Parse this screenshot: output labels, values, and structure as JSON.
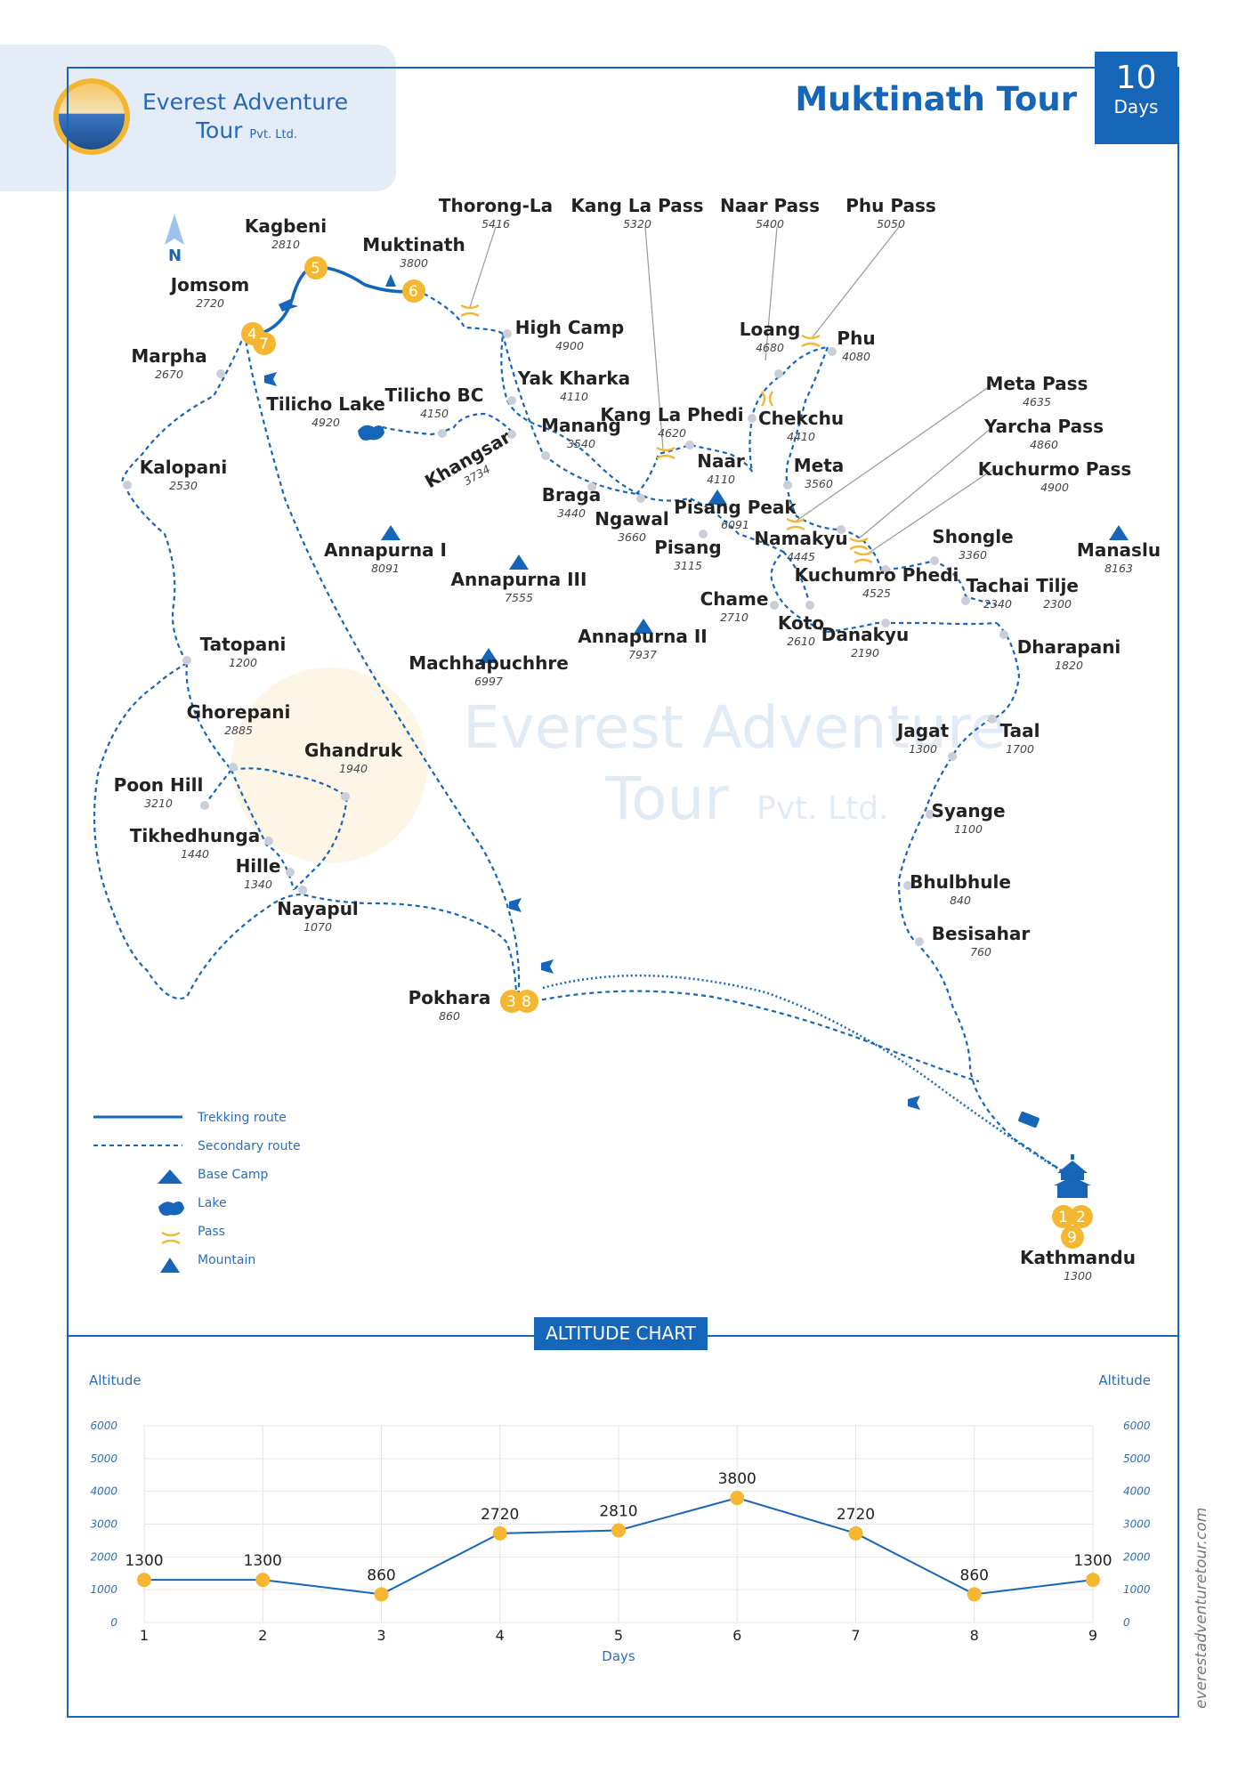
{
  "brand": {
    "line1": "Everest Adventure",
    "line2": "Tour",
    "line2_suffix": "Pvt. Ltd."
  },
  "tour": {
    "title": "Muktinath Tour",
    "days_number": "10",
    "days_label": "Days"
  },
  "compass": "N",
  "watermark": {
    "line1": "Everest Adventure",
    "line2": "Tour",
    "line2_suffix": "Pvt. Ltd."
  },
  "website": "everestadventuretour.com",
  "places": [
    {
      "name": "Kagbeni",
      "alt": "2810"
    },
    {
      "name": "Muktinath",
      "alt": "3800"
    },
    {
      "name": "Jomsom",
      "alt": "2720"
    },
    {
      "name": "Marpha",
      "alt": "2670"
    },
    {
      "name": "Tilicho Lake",
      "alt": "4920"
    },
    {
      "name": "Tilicho BC",
      "alt": "4150"
    },
    {
      "name": "Khangsar",
      "alt": "3734"
    },
    {
      "name": "High Camp",
      "alt": "4900"
    },
    {
      "name": "Yak Kharka",
      "alt": "4110"
    },
    {
      "name": "Manang",
      "alt": "3540"
    },
    {
      "name": "Kang La Phedi",
      "alt": "4620"
    },
    {
      "name": "Braga",
      "alt": "3440"
    },
    {
      "name": "Ngawal",
      "alt": "3660"
    },
    {
      "name": "Pisang",
      "alt": "3115"
    },
    {
      "name": "Chame",
      "alt": "2710"
    },
    {
      "name": "Koto",
      "alt": "2610"
    },
    {
      "name": "Danakyu",
      "alt": "2190"
    },
    {
      "name": "Loang",
      "alt": "4680"
    },
    {
      "name": "Phu",
      "alt": "4080"
    },
    {
      "name": "Chekchu",
      "alt": "4410"
    },
    {
      "name": "Naar",
      "alt": "4110"
    },
    {
      "name": "Meta",
      "alt": "3560"
    },
    {
      "name": "Namakyu",
      "alt": "4445"
    },
    {
      "name": "Kuchumro Phedi",
      "alt": "4525"
    },
    {
      "name": "Shongle",
      "alt": "3360"
    },
    {
      "name": "Tachai",
      "alt": "2340"
    },
    {
      "name": "Tilje",
      "alt": "2300"
    },
    {
      "name": "Dharapani",
      "alt": "1820"
    },
    {
      "name": "Taal",
      "alt": "1700"
    },
    {
      "name": "Jagat",
      "alt": "1300"
    },
    {
      "name": "Syange",
      "alt": "1100"
    },
    {
      "name": "Bhulbhule",
      "alt": "840"
    },
    {
      "name": "Besisahar",
      "alt": "760"
    },
    {
      "name": "Kalopani",
      "alt": "2530"
    },
    {
      "name": "Tatopani",
      "alt": "1200"
    },
    {
      "name": "Ghorepani",
      "alt": "2885"
    },
    {
      "name": "Ghandruk",
      "alt": "1940"
    },
    {
      "name": "Poon Hill",
      "alt": "3210"
    },
    {
      "name": "Tikhedhunga",
      "alt": "1440"
    },
    {
      "name": "Hille",
      "alt": "1340"
    },
    {
      "name": "Nayapul",
      "alt": "1070"
    },
    {
      "name": "Pokhara",
      "alt": "860"
    },
    {
      "name": "Kathmandu",
      "alt": "1300"
    }
  ],
  "passes": [
    {
      "name": "Thorong-La",
      "alt": "5416"
    },
    {
      "name": "Kang La Pass",
      "alt": "5320"
    },
    {
      "name": "Naar Pass",
      "alt": "5400"
    },
    {
      "name": "Phu Pass",
      "alt": "5050"
    },
    {
      "name": "Meta Pass",
      "alt": "4635"
    },
    {
      "name": "Yarcha Pass",
      "alt": "4860"
    },
    {
      "name": "Kuchurmo Pass",
      "alt": "4900"
    }
  ],
  "mountains": [
    {
      "name": "Annapurna I",
      "alt": "8091"
    },
    {
      "name": "Annapurna III",
      "alt": "7555"
    },
    {
      "name": "Annapurna II",
      "alt": "7937"
    },
    {
      "name": "Machhapuchhre",
      "alt": "6997"
    },
    {
      "name": "Pisang Peak",
      "alt": "6091"
    },
    {
      "name": "Manaslu",
      "alt": "8163"
    }
  ],
  "stops": {
    "kagbeni": "5",
    "muktinath": "6",
    "jomsom_a": "4",
    "jomsom_b": "7",
    "pokhara_a": "3",
    "pokhara_b": "8",
    "kathmandu_a": "1",
    "kathmandu_b": "2",
    "kathmandu_c": "9"
  },
  "legend": [
    {
      "label": "Trekking route",
      "icon": "solid-line"
    },
    {
      "label": "Secondary route",
      "icon": "dashed-line"
    },
    {
      "label": "Base Camp",
      "icon": "tent-icon"
    },
    {
      "label": "Lake",
      "icon": "lake-icon"
    },
    {
      "label": "Pass",
      "icon": "pass-icon"
    },
    {
      "label": "Mountain",
      "icon": "mountain-icon"
    }
  ],
  "colors": {
    "route": "#1565b8",
    "stop": "#f5b731",
    "waypoint": "#c9ced8",
    "frame": "#1565b8"
  },
  "altitude_chart": {
    "title": "ALTITUDE CHART",
    "left_axis_title": "Altitude",
    "right_axis_title": "Altitude",
    "x_axis_title": "Days"
  },
  "chart_data": {
    "type": "line",
    "title": "ALTITUDE CHART",
    "xlabel": "Days",
    "ylabel": "Altitude",
    "x": [
      1,
      2,
      3,
      4,
      5,
      6,
      7,
      8,
      9
    ],
    "values": [
      1300,
      1300,
      860,
      2720,
      2810,
      3800,
      2720,
      860,
      1300
    ],
    "data_labels": [
      "1300",
      "1300",
      "860",
      "2720",
      "2810",
      "3800",
      "2720",
      "860",
      "1300"
    ],
    "yticks": [
      "0",
      "1000",
      "2000",
      "3000",
      "4000",
      "5000",
      "6000"
    ],
    "ylim": [
      0,
      6000
    ],
    "grid": true
  }
}
